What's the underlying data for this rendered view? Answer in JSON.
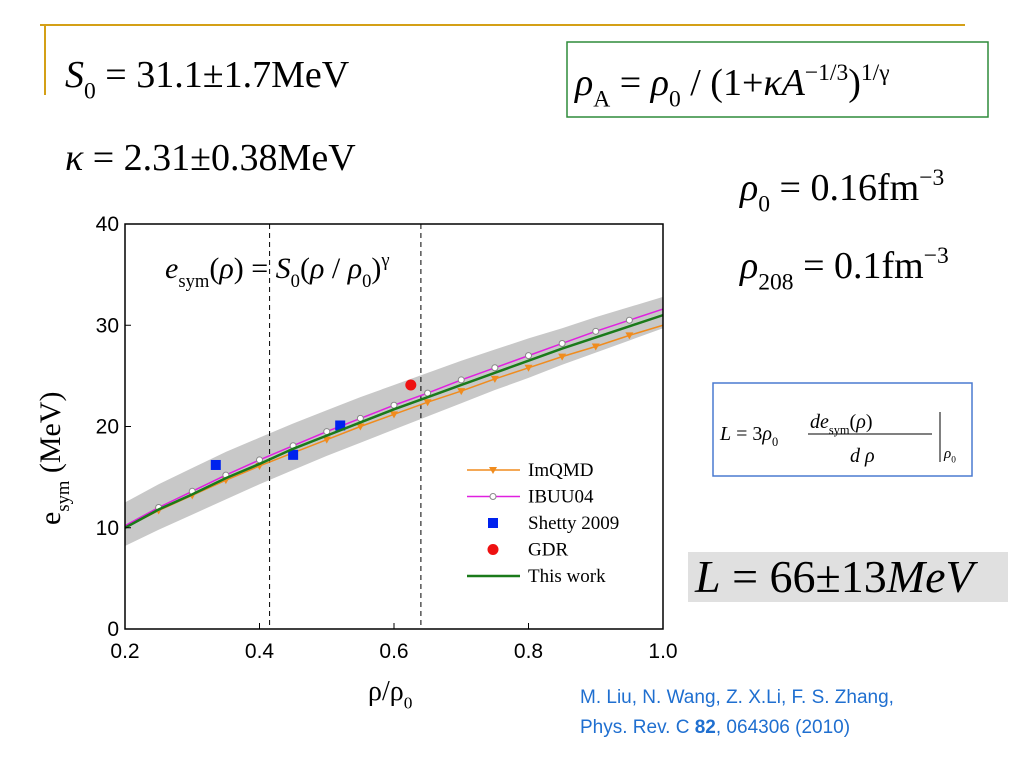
{
  "slide": {
    "formulas": {
      "s0": [
        {
          "i": "S"
        },
        {
          "sub": "0"
        },
        {
          "t": " = 31.1±1.7MeV"
        }
      ],
      "kappa": [
        {
          "i": "κ"
        },
        {
          "t": " = 2.31±0.38MeV"
        }
      ],
      "rhoA": [
        {
          "i": "ρ"
        },
        {
          "sub": "A"
        },
        {
          "t": " = "
        },
        {
          "i": "ρ"
        },
        {
          "sub": "0"
        },
        {
          "t": " / (1+"
        },
        {
          "i": "κA"
        },
        {
          "sup": "−1/3"
        },
        {
          "t": ")"
        },
        {
          "sup": "1/γ"
        }
      ],
      "rho0": [
        {
          "i": "ρ"
        },
        {
          "sub": "0"
        },
        {
          "t": " = 0.16fm"
        },
        {
          "sup": "−3"
        }
      ],
      "rho208": [
        {
          "i": "ρ"
        },
        {
          "sub": "208"
        },
        {
          "t": " = 0.1fm"
        },
        {
          "sup": "−3"
        }
      ],
      "L_def": {
        "lhs": [
          {
            "i": "L"
          },
          {
            "t": " = 3"
          },
          {
            "i": "ρ"
          },
          {
            "sub": "0"
          }
        ],
        "numerator": [
          {
            "i": "de"
          },
          {
            "sub": "sym"
          },
          {
            "t": "("
          },
          {
            "i": "ρ"
          },
          {
            "t": ")"
          }
        ],
        "denominator": [
          {
            "i": "d ρ"
          }
        ],
        "eval": [
          {
            "i": "ρ"
          },
          {
            "sub": "0"
          }
        ]
      },
      "L_result": [
        {
          "i": "L"
        },
        {
          "t": " = 66±13"
        },
        {
          "i": "MeV"
        }
      ]
    },
    "citation": [
      [
        {
          "t": "M. Liu, N. Wang, Z. X.Li, F. S. Zhang,"
        }
      ],
      [
        {
          "t": "Phys. Rev. C "
        },
        {
          "b": "82"
        },
        {
          "t": ", 064306 (2010)"
        }
      ]
    ]
  },
  "chart_data": {
    "type": "line",
    "title": [
      {
        "i": "e"
      },
      {
        "sub": "sym"
      },
      {
        "t": "("
      },
      {
        "i": "ρ"
      },
      {
        "t": ") = "
      },
      {
        "i": "S"
      },
      {
        "sub": "0"
      },
      {
        "t": "("
      },
      {
        "i": "ρ"
      },
      {
        "t": " / "
      },
      {
        "i": "ρ"
      },
      {
        "sub": "0"
      },
      {
        "t": ")"
      },
      {
        "sup": "γ"
      }
    ],
    "xlabel": [
      {
        "t": "ρ/ρ"
      },
      {
        "sub": "0"
      }
    ],
    "ylabel": [
      {
        "t": "e"
      },
      {
        "sub": "sym"
      },
      {
        "t": "  (MeV)"
      }
    ],
    "xlim": [
      0.2,
      1.0
    ],
    "xticks": [
      0.2,
      0.4,
      0.6,
      0.8,
      {
        "value": 1,
        "label": "1.0"
      }
    ],
    "ylim": [
      0,
      40
    ],
    "yticks": [
      0,
      10,
      20,
      30,
      40
    ],
    "x": [
      0.2,
      0.25,
      0.3,
      0.35,
      0.4,
      0.45,
      0.5,
      0.55,
      0.6,
      0.65,
      0.7,
      0.75,
      0.8,
      0.85,
      0.9,
      0.95,
      1.0
    ],
    "band": {
      "color": "#c8c8c8",
      "lower": [
        8.2,
        9.8,
        11.3,
        12.8,
        14.3,
        15.7,
        17.1,
        18.4,
        19.7,
        21.0,
        22.3,
        23.6,
        24.8,
        26.1,
        27.3,
        28.5,
        29.7
      ],
      "upper": [
        12.5,
        14.3,
        15.9,
        17.5,
        18.9,
        20.3,
        21.6,
        22.9,
        24.1,
        25.3,
        26.5,
        27.6,
        28.7,
        29.7,
        30.8,
        31.8,
        32.8
      ]
    },
    "vlines": [
      0.415,
      0.64
    ],
    "legend_loc": "lower right",
    "series": [
      {
        "name": "ImQMD",
        "color": "#f08c1e",
        "marker": "triangle",
        "line": true,
        "values": [
          10.0,
          11.7,
          13.2,
          14.7,
          16.1,
          17.4,
          18.7,
          20.0,
          21.2,
          22.4,
          23.5,
          24.7,
          25.8,
          26.9,
          27.9,
          29.0,
          30.0
        ]
      },
      {
        "name": "IBUU04",
        "color": "#e020e0",
        "marker": "circle-open",
        "line": true,
        "values": [
          10.2,
          12.0,
          13.6,
          15.2,
          16.7,
          18.1,
          19.5,
          20.8,
          22.1,
          23.3,
          24.6,
          25.8,
          27.0,
          28.2,
          29.4,
          30.5,
          31.6
        ]
      },
      {
        "name": "Shetty 2009",
        "color": "#0022ee",
        "marker": "square",
        "line": false,
        "x": [
          0.335,
          0.45,
          0.52
        ],
        "values": [
          16.2,
          17.2,
          20.1
        ]
      },
      {
        "name": "GDR",
        "color": "#ee1111",
        "marker": "circle",
        "line": false,
        "x": [
          0.625
        ],
        "values": [
          24.1
        ]
      },
      {
        "name": "This work",
        "color": "#1a7a1a",
        "marker": "none",
        "line": true,
        "values": [
          10.0,
          11.8,
          13.3,
          14.9,
          16.3,
          17.8,
          19.1,
          20.4,
          21.7,
          22.9,
          24.1,
          25.3,
          26.5,
          27.7,
          28.8,
          29.9,
          31.0
        ]
      }
    ]
  }
}
